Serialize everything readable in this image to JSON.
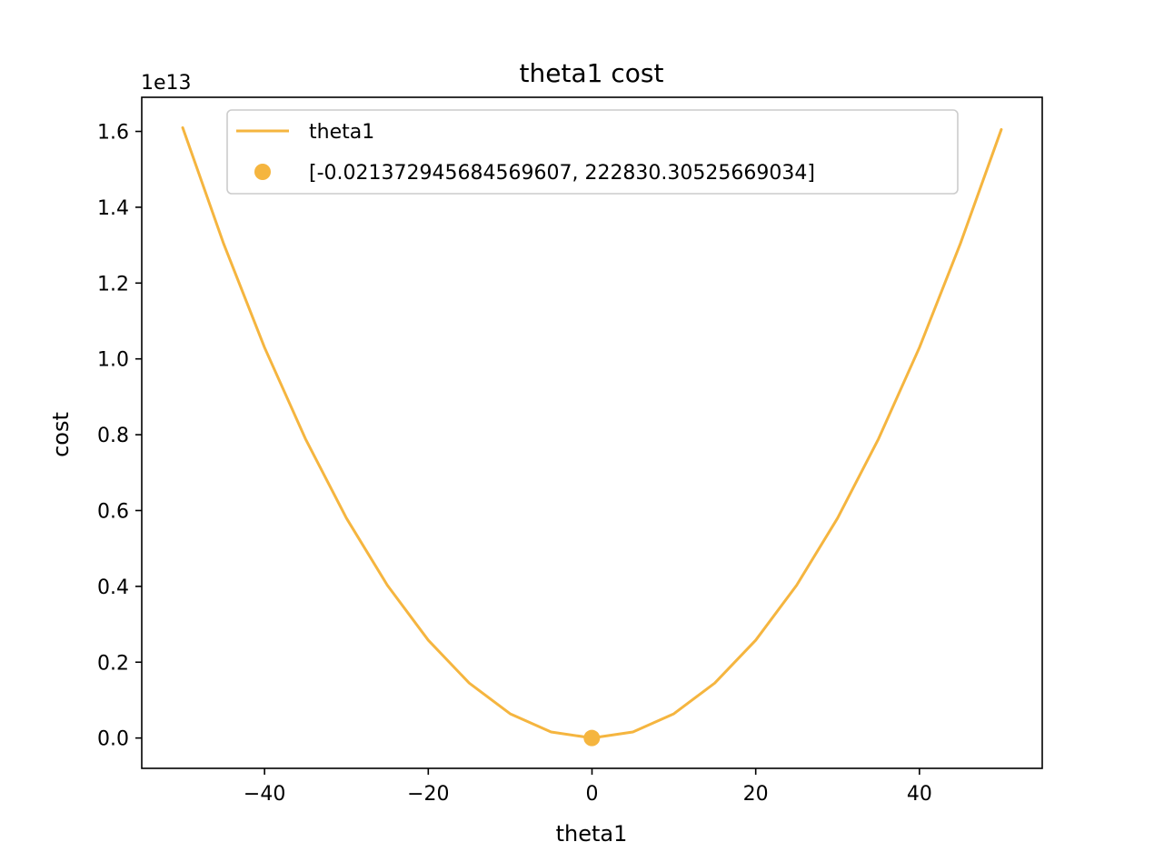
{
  "chart_data": {
    "type": "line",
    "title": "theta1 cost",
    "xlabel": "theta1",
    "ylabel": "cost",
    "y_multiplier_label": "1e13",
    "y_scale": 10000000000000.0,
    "xlim": [
      -55,
      55
    ],
    "ylim": [
      -0.08,
      1.69
    ],
    "x_ticks": [
      -40,
      -20,
      0,
      20,
      40
    ],
    "x_tick_labels": [
      "−40",
      "−20",
      "0",
      "20",
      "40"
    ],
    "y_ticks": [
      0.0,
      0.2,
      0.4,
      0.6,
      0.8,
      1.0,
      1.2,
      1.4,
      1.6
    ],
    "y_tick_labels": [
      "0.0",
      "0.2",
      "0.4",
      "0.6",
      "0.8",
      "1.0",
      "1.2",
      "1.4",
      "1.6"
    ],
    "grid": false,
    "legend_position": "top-center",
    "series": [
      {
        "name": "theta1",
        "kind": "line",
        "color": "#F5B53F",
        "x": [
          -50,
          -45,
          -40,
          -35,
          -30,
          -25,
          -20,
          -15,
          -10,
          -5,
          0,
          5,
          10,
          15,
          20,
          25,
          30,
          35,
          40,
          45,
          50
        ],
        "y": [
          1.61,
          1.304,
          1.03,
          0.789,
          0.58,
          0.403,
          0.258,
          0.145,
          0.064,
          0.016,
          0.0,
          0.016,
          0.064,
          0.145,
          0.258,
          0.403,
          0.58,
          0.789,
          1.03,
          1.304,
          1.605
        ]
      },
      {
        "name": "[-0.021372945684569607, 222830.30525669034]",
        "kind": "scatter",
        "color": "#F5B53F",
        "x": [
          -0.021372945684569607
        ],
        "y": [
          2.2283030525669036e-08
        ]
      }
    ]
  }
}
